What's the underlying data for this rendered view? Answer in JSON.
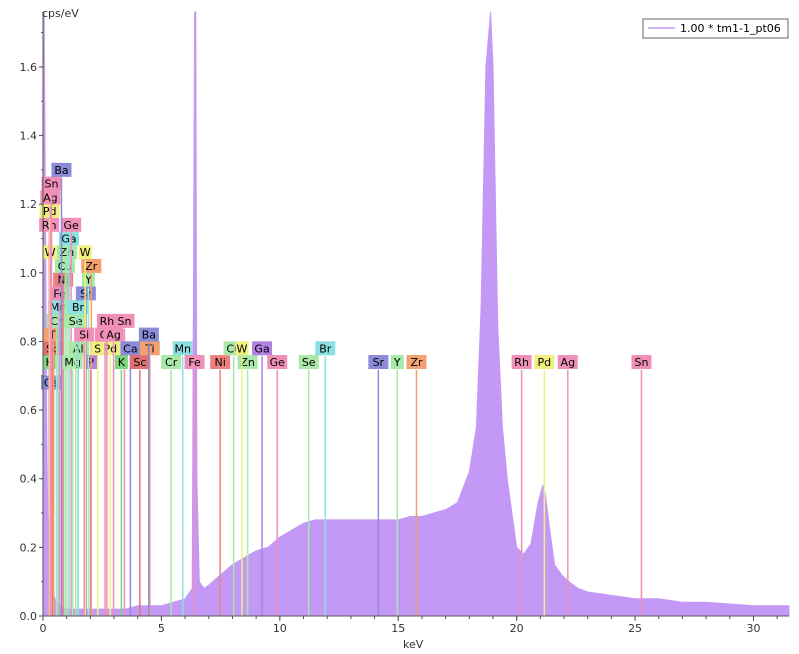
{
  "chart_data": {
    "type": "line",
    "ylabel": "cps/eV",
    "xlabel": "keV",
    "xlim": [
      0,
      31.5
    ],
    "ylim": [
      0,
      1.76
    ],
    "x_ticks": [
      0,
      5,
      10,
      15,
      20,
      25,
      30
    ],
    "y_ticks": [
      0.0,
      0.2,
      0.4,
      0.6,
      0.8,
      1.0,
      1.2,
      1.4,
      1.6
    ],
    "legend": {
      "position": "top-right",
      "entries": [
        "1.00 * tm1-1_pt06"
      ]
    },
    "colors": {
      "spectrum": "#c499f5",
      "axis": "#555555"
    },
    "series": [
      {
        "name": "1.00 * tm1-1_pt06",
        "x": [
          0.0,
          0.05,
          0.1,
          0.15,
          0.2,
          0.3,
          0.4,
          0.5,
          0.7,
          1.0,
          1.5,
          2.0,
          2.5,
          3.0,
          3.5,
          4.0,
          4.5,
          5.0,
          5.5,
          6.0,
          6.3,
          6.4,
          6.45,
          6.5,
          6.6,
          6.8,
          7.0,
          7.5,
          8.0,
          8.5,
          9.0,
          9.5,
          10.0,
          10.5,
          11.0,
          11.5,
          12.0,
          12.5,
          13.0,
          13.5,
          14.0,
          14.5,
          15.0,
          15.5,
          16.0,
          16.5,
          17.0,
          17.5,
          18.0,
          18.3,
          18.5,
          18.7,
          18.9,
          19.0,
          19.2,
          19.4,
          19.6,
          19.8,
          20.0,
          20.3,
          20.6,
          20.9,
          21.1,
          21.2,
          21.4,
          21.6,
          21.9,
          22.2,
          22.6,
          23.0,
          24.0,
          25.0,
          26.0,
          27.0,
          28.0,
          29.0,
          30.0,
          31.0,
          31.5
        ],
        "y": [
          1.76,
          1.76,
          1.2,
          0.6,
          0.3,
          0.15,
          0.08,
          0.05,
          0.03,
          0.02,
          0.02,
          0.02,
          0.02,
          0.02,
          0.02,
          0.03,
          0.03,
          0.03,
          0.04,
          0.05,
          0.08,
          1.76,
          1.76,
          0.4,
          0.1,
          0.08,
          0.09,
          0.12,
          0.15,
          0.17,
          0.19,
          0.2,
          0.23,
          0.25,
          0.27,
          0.28,
          0.28,
          0.28,
          0.28,
          0.28,
          0.28,
          0.28,
          0.28,
          0.29,
          0.29,
          0.3,
          0.31,
          0.33,
          0.42,
          0.55,
          0.9,
          1.6,
          1.76,
          1.6,
          0.85,
          0.55,
          0.4,
          0.3,
          0.2,
          0.18,
          0.21,
          0.33,
          0.38,
          0.36,
          0.25,
          0.15,
          0.12,
          0.1,
          0.08,
          0.07,
          0.06,
          0.05,
          0.05,
          0.04,
          0.04,
          0.035,
          0.03,
          0.03,
          0.03
        ]
      }
    ],
    "element_lines": [
      {
        "label": "Ca",
        "x": 0.34,
        "y": 0.68,
        "color": "#8b8bd9"
      },
      {
        "label": "K",
        "x": 0.26,
        "y": 0.74,
        "color": "#7ed67e"
      },
      {
        "label": "Sc",
        "x": 0.4,
        "y": 0.78,
        "color": "#e07070"
      },
      {
        "label": "Ti",
        "x": 0.45,
        "y": 0.82,
        "color": "#f2a070"
      },
      {
        "label": "Cr",
        "x": 0.57,
        "y": 0.86,
        "color": "#a8e8a8"
      },
      {
        "label": "Mn",
        "x": 0.64,
        "y": 0.9,
        "color": "#8de0e0"
      },
      {
        "label": "Fe",
        "x": 0.7,
        "y": 0.94,
        "color": "#f090b8"
      },
      {
        "label": "Ni",
        "x": 0.85,
        "y": 0.98,
        "color": "#f08080"
      },
      {
        "label": "Cu",
        "x": 0.93,
        "y": 1.02,
        "color": "#a8e8a8"
      },
      {
        "label": "W",
        "x": 0.3,
        "y": 1.06,
        "color": "#f0f080"
      },
      {
        "label": "Zn",
        "x": 1.01,
        "y": 1.06,
        "color": "#a8e8a8"
      },
      {
        "label": "Ga",
        "x": 1.1,
        "y": 1.1,
        "color": "#8de0e0"
      },
      {
        "label": "Rh",
        "x": 0.26,
        "y": 1.14,
        "color": "#f090b8"
      },
      {
        "label": "Ge",
        "x": 1.19,
        "y": 1.14,
        "color": "#f090b8"
      },
      {
        "label": "Pd",
        "x": 0.28,
        "y": 1.18,
        "color": "#f0f080"
      },
      {
        "label": "Ag",
        "x": 0.31,
        "y": 1.22,
        "color": "#f090b8"
      },
      {
        "label": "Sn",
        "x": 0.36,
        "y": 1.26,
        "color": "#f090b8"
      },
      {
        "label": "Ba",
        "x": 0.78,
        "y": 1.3,
        "color": "#8b8bd9"
      },
      {
        "label": "Mg",
        "x": 1.25,
        "y": 0.74,
        "color": "#a8e8a8"
      },
      {
        "label": "Al",
        "x": 1.49,
        "y": 0.78,
        "color": "#a8e8a8"
      },
      {
        "label": "P",
        "x": 2.01,
        "y": 0.74,
        "color": "#b080e0"
      },
      {
        "label": "Se",
        "x": 1.38,
        "y": 0.86,
        "color": "#a8e8a8"
      },
      {
        "label": "Br",
        "x": 1.48,
        "y": 0.9,
        "color": "#8de0e0"
      },
      {
        "label": "Sr",
        "x": 1.81,
        "y": 0.94,
        "color": "#8b8bd9"
      },
      {
        "label": "Y",
        "x": 1.92,
        "y": 0.98,
        "color": "#a8e8a8"
      },
      {
        "label": "Zr",
        "x": 2.04,
        "y": 1.02,
        "color": "#f2a070"
      },
      {
        "label": "W",
        "x": 1.78,
        "y": 1.06,
        "color": "#f0f080"
      },
      {
        "label": "Si",
        "x": 1.74,
        "y": 0.82,
        "color": "#f090b8"
      },
      {
        "label": "S",
        "x": 2.31,
        "y": 0.78,
        "color": "#f0f080"
      },
      {
        "label": "Pd",
        "x": 2.84,
        "y": 0.78,
        "color": "#f0f080"
      },
      {
        "label": "Rh",
        "x": 2.7,
        "y": 0.86,
        "color": "#f090b8"
      },
      {
        "label": "Sn",
        "x": 3.44,
        "y": 0.86,
        "color": "#f090b8"
      },
      {
        "label": "Cl",
        "x": 2.62,
        "y": 0.82,
        "color": "#f090b8"
      },
      {
        "label": "Ag",
        "x": 2.98,
        "y": 0.82,
        "color": "#f090b8"
      },
      {
        "label": "K",
        "x": 3.31,
        "y": 0.74,
        "color": "#7ed67e"
      },
      {
        "label": "Ca",
        "x": 3.69,
        "y": 0.78,
        "color": "#8b8bd9"
      },
      {
        "label": "Sc",
        "x": 4.09,
        "y": 0.74,
        "color": "#e07070"
      },
      {
        "label": "Ti",
        "x": 4.51,
        "y": 0.78,
        "color": "#f2a070"
      },
      {
        "label": "Ba",
        "x": 4.47,
        "y": 0.82,
        "color": "#8b8bd9"
      },
      {
        "label": "Cr",
        "x": 5.41,
        "y": 0.74,
        "color": "#a8e8a8"
      },
      {
        "label": "Mn",
        "x": 5.9,
        "y": 0.78,
        "color": "#8de0e0"
      },
      {
        "label": "Fe",
        "x": 6.4,
        "y": 0.74,
        "color": "#f090b8"
      },
      {
        "label": "Ni",
        "x": 7.48,
        "y": 0.74,
        "color": "#f08080"
      },
      {
        "label": "Cu",
        "x": 8.05,
        "y": 0.78,
        "color": "#a8e8a8"
      },
      {
        "label": "Zn",
        "x": 8.64,
        "y": 0.74,
        "color": "#a8e8a8"
      },
      {
        "label": "W",
        "x": 8.4,
        "y": 0.78,
        "color": "#f0f080"
      },
      {
        "label": "Ga",
        "x": 9.25,
        "y": 0.78,
        "color": "#b080e0"
      },
      {
        "label": "Ge",
        "x": 9.89,
        "y": 0.74,
        "color": "#f090b8"
      },
      {
        "label": "Se",
        "x": 11.22,
        "y": 0.74,
        "color": "#a8e8a8"
      },
      {
        "label": "Br",
        "x": 11.92,
        "y": 0.78,
        "color": "#8de0e0"
      },
      {
        "label": "Sr",
        "x": 14.16,
        "y": 0.74,
        "color": "#8b8bd9"
      },
      {
        "label": "Y",
        "x": 14.96,
        "y": 0.74,
        "color": "#a8e8a8"
      },
      {
        "label": "Zr",
        "x": 15.77,
        "y": 0.74,
        "color": "#f2a070"
      },
      {
        "label": "Rh",
        "x": 20.21,
        "y": 0.74,
        "color": "#f090b8"
      },
      {
        "label": "Pd",
        "x": 21.17,
        "y": 0.74,
        "color": "#f0f080"
      },
      {
        "label": "Ag",
        "x": 22.16,
        "y": 0.74,
        "color": "#f090b8"
      },
      {
        "label": "Sn",
        "x": 25.27,
        "y": 0.74,
        "color": "#f090b8"
      }
    ]
  }
}
